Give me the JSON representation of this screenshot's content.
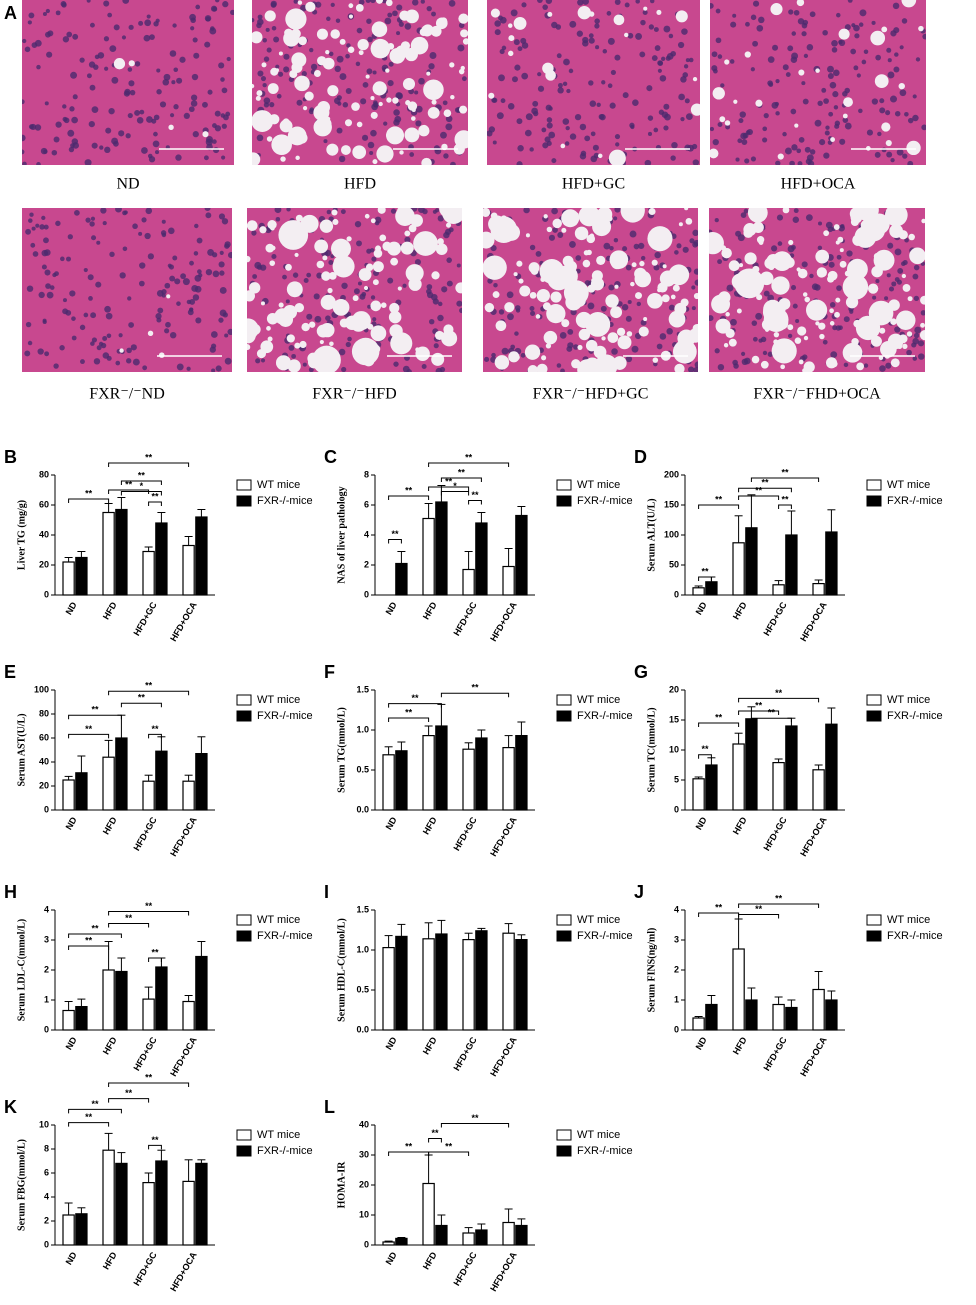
{
  "panel_a": {
    "label": "A",
    "captions": [
      "ND",
      "HFD",
      "HFD+GC",
      "HFD+OCA",
      "FXR⁻/⁻ND",
      "FXR⁻/⁻HFD",
      "FXR⁻/⁻HFD+GC",
      "FXR⁻/⁻FHD+OCA"
    ]
  },
  "chart_data": [
    {
      "type": "bar",
      "label": "B",
      "ylabel": "Liver TG (mg/g)",
      "categories": [
        "ND",
        "HFD",
        "HFD+GC",
        "HFD+OCA"
      ],
      "series": [
        {
          "name": "WT mice",
          "color": "#ffffff",
          "values": [
            22,
            55,
            29,
            33
          ],
          "errors": [
            3,
            6,
            3,
            6
          ]
        },
        {
          "name": "FXR-/-mice",
          "color": "#000000",
          "values": [
            25,
            57,
            48,
            52
          ],
          "errors": [
            4,
            8,
            7,
            5
          ]
        }
      ],
      "ylim": [
        0,
        80
      ],
      "yticks": [
        0,
        20,
        40,
        60,
        80
      ],
      "annotations": [
        "**",
        "**",
        "**",
        "*",
        "**",
        "**"
      ]
    },
    {
      "type": "bar",
      "label": "C",
      "ylabel": "NAS of liver pathology",
      "categories": [
        "ND",
        "HFD",
        "HFD+GC",
        "HFD+OCA"
      ],
      "series": [
        {
          "name": "WT mice",
          "color": "#ffffff",
          "values": [
            0,
            5.1,
            1.7,
            1.9
          ],
          "errors": [
            0,
            1,
            1.2,
            1.2
          ]
        },
        {
          "name": "FXR-/-mice",
          "color": "#000000",
          "values": [
            2.1,
            6.2,
            4.8,
            5.3
          ],
          "errors": [
            0.8,
            1.1,
            0.7,
            0.6
          ]
        }
      ],
      "ylim": [
        0,
        8
      ],
      "yticks": [
        0,
        2,
        4,
        6,
        8
      ],
      "annotations": [
        "**",
        "**",
        "**",
        "**",
        "*",
        "**",
        "**"
      ]
    },
    {
      "type": "bar",
      "label": "D",
      "ylabel": "Serum ALT(U/L)",
      "categories": [
        "ND",
        "HFD",
        "HFD+GC",
        "HFD+OCA"
      ],
      "series": [
        {
          "name": "WT mice",
          "color": "#ffffff",
          "values": [
            12,
            87,
            17,
            19
          ],
          "errors": [
            3,
            45,
            7,
            6
          ]
        },
        {
          "name": "FXR-/-mice",
          "color": "#000000",
          "values": [
            22,
            112,
            100,
            105
          ],
          "errors": [
            8,
            55,
            40,
            37
          ]
        }
      ],
      "ylim": [
        0,
        200
      ],
      "yticks": [
        0,
        50,
        100,
        150,
        200
      ],
      "annotations": [
        "**",
        "**",
        "**",
        "**",
        "**",
        "**"
      ]
    },
    {
      "type": "bar",
      "label": "E",
      "ylabel": "Serum AST(U/L)",
      "categories": [
        "ND",
        "HFD",
        "HFD+GC",
        "HFD+OCA"
      ],
      "series": [
        {
          "name": "WT mice",
          "color": "#ffffff",
          "values": [
            25,
            44,
            24,
            24
          ],
          "errors": [
            3,
            14,
            5,
            5
          ]
        },
        {
          "name": "FXR-/-mice",
          "color": "#000000",
          "values": [
            31,
            60,
            49,
            47
          ],
          "errors": [
            14,
            19,
            12,
            14
          ]
        }
      ],
      "ylim": [
        0,
        100
      ],
      "yticks": [
        0,
        20,
        40,
        60,
        80,
        100
      ],
      "annotations": [
        "**",
        "**",
        "**",
        "**",
        "**"
      ]
    },
    {
      "type": "bar",
      "label": "F",
      "ylabel": "Serum TG(mmol/L)",
      "categories": [
        "ND",
        "HFD",
        "HFD+GC",
        "HFD+OCA"
      ],
      "series": [
        {
          "name": "WT mice",
          "color": "#ffffff",
          "values": [
            0.69,
            0.93,
            0.76,
            0.78
          ],
          "errors": [
            0.1,
            0.12,
            0.08,
            0.15
          ]
        },
        {
          "name": "FXR-/-mice",
          "color": "#000000",
          "values": [
            0.74,
            1.05,
            0.9,
            0.93
          ],
          "errors": [
            0.11,
            0.27,
            0.1,
            0.17
          ]
        }
      ],
      "ylim": [
        0,
        1.5
      ],
      "yticks": [
        {
          "value": 0,
          "label": "0.0"
        },
        {
          "value": 0.5,
          "label": "0.5"
        },
        {
          "value": 1,
          "label": "1.0"
        },
        {
          "value": 1.5,
          "label": "1.5"
        }
      ],
      "annotations": [
        "**",
        "**",
        "**"
      ]
    },
    {
      "type": "bar",
      "label": "G",
      "ylabel": "Serum TC(mmol/L)",
      "categories": [
        "ND",
        "HFD",
        "HFD+GC",
        "HFD+OCA"
      ],
      "series": [
        {
          "name": "WT mice",
          "color": "#ffffff",
          "values": [
            5.2,
            11,
            7.9,
            6.7
          ],
          "errors": [
            0.3,
            1.8,
            0.6,
            0.8
          ]
        },
        {
          "name": "FXR-/-mice",
          "color": "#000000",
          "values": [
            7.5,
            15.2,
            14,
            14.3
          ],
          "errors": [
            1.2,
            2,
            1.3,
            2.7
          ]
        }
      ],
      "ylim": [
        0,
        20
      ],
      "yticks": [
        0,
        5,
        10,
        15,
        20
      ],
      "annotations": [
        "**",
        "**",
        "**",
        "**",
        "**"
      ]
    },
    {
      "type": "bar",
      "label": "H",
      "ylabel": "Serum LDL-C(mmol/L)",
      "categories": [
        "ND",
        "HFD",
        "HFD+GC",
        "HFD+OCA"
      ],
      "series": [
        {
          "name": "WT mice",
          "color": "#ffffff",
          "values": [
            0.65,
            2,
            1.03,
            0.95
          ],
          "errors": [
            0.3,
            0.95,
            0.4,
            0.2
          ]
        },
        {
          "name": "FXR-/-mice",
          "color": "#000000",
          "values": [
            0.78,
            1.95,
            2.1,
            2.45
          ],
          "errors": [
            0.25,
            0.45,
            0.3,
            0.5
          ]
        }
      ],
      "ylim": [
        0,
        4
      ],
      "yticks": [
        0,
        1,
        2,
        3,
        4
      ],
      "annotations": [
        "**",
        "**",
        "**",
        "**",
        "**"
      ]
    },
    {
      "type": "bar",
      "label": "I",
      "ylabel": "Serum HDL-C(mmol/L)",
      "categories": [
        "ND",
        "HFD",
        "HFD+GC",
        "HFD+OCA"
      ],
      "series": [
        {
          "name": "WT mice",
          "color": "#ffffff",
          "values": [
            1.03,
            1.14,
            1.13,
            1.21
          ],
          "errors": [
            0.15,
            0.2,
            0.08,
            0.12
          ]
        },
        {
          "name": "FXR-/-mice",
          "color": "#000000",
          "values": [
            1.17,
            1.2,
            1.24,
            1.13
          ],
          "errors": [
            0.15,
            0.17,
            0.03,
            0.06
          ]
        }
      ],
      "ylim": [
        0,
        1.5
      ],
      "yticks": [
        {
          "value": 0,
          "label": "0.0"
        },
        {
          "value": 0.5,
          "label": "0.5"
        },
        {
          "value": 1,
          "label": "1.0"
        },
        {
          "value": 1.5,
          "label": "1.5"
        }
      ],
      "annotations": []
    },
    {
      "type": "bar",
      "label": "J",
      "ylabel": "Serum FINS(ng/ml)",
      "categories": [
        "ND",
        "HFD",
        "HFD+GC",
        "HFD+OCA"
      ],
      "series": [
        {
          "name": "WT mice",
          "color": "#ffffff",
          "values": [
            0.4,
            2.7,
            0.85,
            1.35
          ],
          "errors": [
            0.05,
            1,
            0.25,
            0.6
          ]
        },
        {
          "name": "FXR-/-mice",
          "color": "#000000",
          "values": [
            0.85,
            1,
            0.75,
            1
          ],
          "errors": [
            0.3,
            0.4,
            0.25,
            0.3
          ]
        }
      ],
      "ylim": [
        0,
        4
      ],
      "yticks": [
        0,
        1,
        2,
        3,
        4
      ],
      "annotations": [
        "**",
        "**",
        "**"
      ]
    },
    {
      "type": "bar",
      "label": "K",
      "ylabel": "Serum FBG(mmol/L)",
      "categories": [
        "ND",
        "HFD",
        "HFD+GC",
        "HFD+OCA"
      ],
      "series": [
        {
          "name": "WT mice",
          "color": "#ffffff",
          "values": [
            2.5,
            7.9,
            5.2,
            5.3
          ],
          "errors": [
            1,
            1.4,
            0.8,
            1.8
          ]
        },
        {
          "name": "FXR-/-mice",
          "color": "#000000",
          "values": [
            2.6,
            6.8,
            7,
            6.8
          ],
          "errors": [
            0.5,
            0.9,
            0.9,
            0.3
          ]
        }
      ],
      "ylim": [
        0,
        10
      ],
      "yticks": [
        0,
        2,
        4,
        6,
        8,
        10
      ],
      "annotations": [
        "**",
        "**",
        "**",
        "**",
        "**"
      ]
    },
    {
      "type": "bar",
      "label": "L",
      "ylabel": "HOMA-IR",
      "categories": [
        "ND",
        "HFD",
        "HFD+GC",
        "HFD+OCA"
      ],
      "series": [
        {
          "name": "WT mice",
          "color": "#ffffff",
          "values": [
            1,
            20.5,
            4,
            7.5
          ],
          "errors": [
            0.3,
            9.5,
            1.8,
            4.5
          ]
        },
        {
          "name": "FXR-/-mice",
          "color": "#000000",
          "values": [
            2.2,
            6.5,
            5,
            6.5
          ],
          "errors": [
            0.3,
            3.5,
            2,
            2.2
          ]
        }
      ],
      "ylim": [
        0,
        40
      ],
      "yticks": [
        0,
        10,
        20,
        30,
        40
      ],
      "annotations": [
        "**",
        "**",
        "**",
        "**"
      ]
    }
  ]
}
